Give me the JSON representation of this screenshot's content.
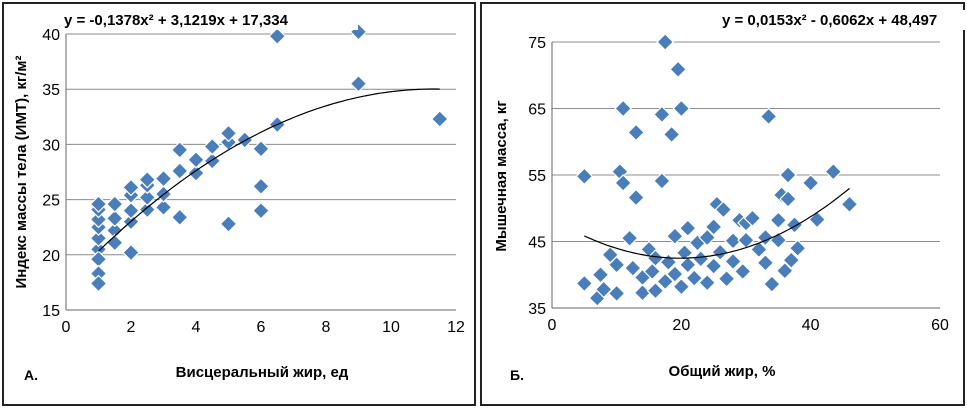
{
  "chart_data": [
    {
      "id": "A",
      "type": "scatter",
      "panel_label": "А.",
      "equation": "y = -0,1378x² + 3,1219x + 17,334",
      "xlabel": "Висцеральный жир, ед",
      "ylabel": "Индекс массы тела (ИМТ), кг/м²",
      "xlim": [
        0,
        12
      ],
      "ylim": [
        15,
        40
      ],
      "xticks": [
        0,
        2,
        4,
        6,
        8,
        10,
        12
      ],
      "xtick_labels": [
        "0",
        "2",
        "4",
        "6",
        "8",
        "10",
        "12"
      ],
      "yticks": [
        15,
        20,
        25,
        30,
        35,
        40
      ],
      "ytick_labels": [
        "15",
        "20",
        "25",
        "30",
        "35",
        "40"
      ],
      "trend": {
        "type": "poly2",
        "a": -0.1378,
        "b": 3.1219,
        "c": 17.334,
        "x_from": 1,
        "x_to": 11.5
      },
      "points": [
        [
          1,
          20.5
        ],
        [
          1,
          21.5
        ],
        [
          1,
          22.5
        ],
        [
          1,
          23.2
        ],
        [
          1,
          24.1
        ],
        [
          1,
          24.6
        ],
        [
          1,
          19.6
        ],
        [
          1,
          18.3
        ],
        [
          1,
          17.4
        ],
        [
          1.5,
          22.2
        ],
        [
          1.5,
          23.3
        ],
        [
          1.5,
          24.6
        ],
        [
          1.5,
          21.1
        ],
        [
          2,
          23
        ],
        [
          2,
          24
        ],
        [
          2,
          25.4
        ],
        [
          2,
          26.1
        ],
        [
          2,
          20.2
        ],
        [
          2.5,
          24.1
        ],
        [
          2.5,
          25.2
        ],
        [
          2.5,
          26.3
        ],
        [
          2.5,
          26.8
        ],
        [
          3,
          24.3
        ],
        [
          3,
          25.5
        ],
        [
          3,
          26.9
        ],
        [
          3.5,
          23.4
        ],
        [
          3.5,
          27.6
        ],
        [
          3.5,
          29.5
        ],
        [
          4,
          27.4
        ],
        [
          4,
          28.6
        ],
        [
          4.5,
          28.5
        ],
        [
          4.5,
          29.8
        ],
        [
          5,
          30.2
        ],
        [
          5,
          31
        ],
        [
          5,
          22.8
        ],
        [
          5.5,
          30.4
        ],
        [
          6,
          29.6
        ],
        [
          6,
          26.2
        ],
        [
          6,
          24
        ],
        [
          6.5,
          31.8
        ],
        [
          6.5,
          39.8
        ],
        [
          9,
          40.2
        ],
        [
          9,
          35.5
        ],
        [
          11.5,
          32.3
        ]
      ]
    },
    {
      "id": "B",
      "type": "scatter",
      "panel_label": "Б.",
      "equation": "y = 0,0153x² - 0,6062x + 48,497",
      "xlabel": "Общий жир, %",
      "ylabel": "Мышечная масса, кг",
      "xlim": [
        0,
        60
      ],
      "ylim": [
        35,
        75
      ],
      "xticks": [
        0,
        20,
        40,
        60
      ],
      "xtick_labels": [
        "0",
        "20",
        "40",
        "60"
      ],
      "yticks": [
        35,
        45,
        55,
        65,
        75
      ],
      "ytick_labels": [
        "35",
        "45",
        "55",
        "65",
        "75"
      ],
      "trend": {
        "type": "poly2",
        "a": 0.0153,
        "b": -0.6062,
        "c": 48.497,
        "x_from": 5,
        "x_to": 46
      },
      "points": [
        [
          5,
          54.8
        ],
        [
          5,
          38.7
        ],
        [
          7,
          36.5
        ],
        [
          7.5,
          40
        ],
        [
          8,
          37.8
        ],
        [
          9,
          43
        ],
        [
          10,
          37.2
        ],
        [
          10,
          41.5
        ],
        [
          10.5,
          55.5
        ],
        [
          11,
          65
        ],
        [
          11,
          53.8
        ],
        [
          12,
          45.5
        ],
        [
          12.5,
          41
        ],
        [
          13,
          61.4
        ],
        [
          13,
          51.6
        ],
        [
          14,
          37.3
        ],
        [
          14,
          39.6
        ],
        [
          15,
          43.8
        ],
        [
          15.5,
          40.5
        ],
        [
          16,
          37.6
        ],
        [
          16,
          42.5
        ],
        [
          17,
          54.1
        ],
        [
          17,
          64.1
        ],
        [
          17.5,
          75
        ],
        [
          17.5,
          39
        ],
        [
          18,
          41.9
        ],
        [
          18.5,
          61.1
        ],
        [
          19,
          45.8
        ],
        [
          19,
          40.1
        ],
        [
          19.5,
          70.9
        ],
        [
          20,
          65
        ],
        [
          20,
          38.2
        ],
        [
          20.5,
          43.3
        ],
        [
          21,
          47
        ],
        [
          21,
          41.5
        ],
        [
          22,
          39.5
        ],
        [
          22.5,
          44.8
        ],
        [
          23,
          42.4
        ],
        [
          24,
          38.8
        ],
        [
          24,
          45.6
        ],
        [
          25,
          41.3
        ],
        [
          25,
          47.2
        ],
        [
          25.5,
          50.6
        ],
        [
          26,
          43.4
        ],
        [
          26.5,
          49.8
        ],
        [
          27,
          39.4
        ],
        [
          28,
          45.1
        ],
        [
          28,
          42
        ],
        [
          29,
          48.2
        ],
        [
          29.5,
          40.5
        ],
        [
          30,
          45.2
        ],
        [
          30,
          47.8
        ],
        [
          31,
          48.5
        ],
        [
          32,
          43.8
        ],
        [
          33,
          45.6
        ],
        [
          33,
          41.8
        ],
        [
          33.5,
          63.8
        ],
        [
          34,
          38.6
        ],
        [
          35,
          45.2
        ],
        [
          35,
          48.2
        ],
        [
          35.5,
          52
        ],
        [
          36,
          40.6
        ],
        [
          36.5,
          51.4
        ],
        [
          36.5,
          55
        ],
        [
          37,
          42.2
        ],
        [
          37.5,
          47.5
        ],
        [
          38,
          44
        ],
        [
          40,
          53.8
        ],
        [
          41,
          48.3
        ],
        [
          43.5,
          55.5
        ],
        [
          46,
          50.6
        ]
      ]
    }
  ]
}
